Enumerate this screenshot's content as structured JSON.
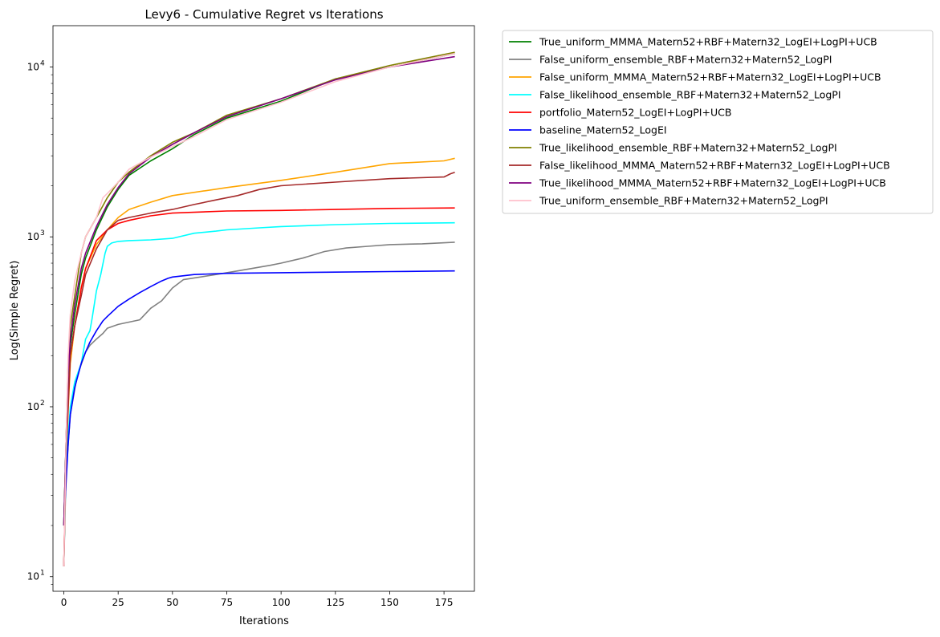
{
  "chart_data": {
    "type": "line",
    "title": "Levy6 - Cumulative Regret vs Iterations",
    "xlabel": "Iterations",
    "ylabel": "Log(Simple Regret)",
    "yscale": "log",
    "xlim": [
      -5,
      189
    ],
    "ylim": [
      8.2,
      17500
    ],
    "xticks": [
      0,
      25,
      50,
      75,
      100,
      125,
      150,
      175
    ],
    "xtick_labels": [
      "0",
      "25",
      "50",
      "75",
      "100",
      "125",
      "150",
      "175"
    ],
    "yticks": [
      10,
      100,
      1000,
      10000
    ],
    "ytick_labels": [
      "10",
      "10",
      "10",
      "10"
    ],
    "ytick_exponents": [
      "1",
      "2",
      "3",
      "4"
    ],
    "grid": false,
    "legend_position": "outside-upper-right",
    "series": [
      {
        "name": "True_uniform_MMMA_Matern52+RBF+Matern32_LogEI+LogPI+UCB",
        "color": "#008000",
        "x": [
          0,
          1,
          2,
          3,
          5,
          8,
          10,
          15,
          20,
          25,
          30,
          40,
          50,
          60,
          75,
          100,
          125,
          150,
          180
        ],
        "y": [
          20,
          60,
          150,
          230,
          350,
          600,
          750,
          1100,
          1500,
          1900,
          2300,
          2800,
          3300,
          4000,
          5000,
          6300,
          8500,
          10000,
          12000
        ]
      },
      {
        "name": "False_uniform_ensemble_RBF+Matern32+Matern52_LogPI",
        "color": "#808080",
        "x": [
          0,
          1,
          3,
          6,
          10,
          12,
          15,
          18,
          20,
          25,
          30,
          35,
          40,
          45,
          50,
          55,
          70,
          80,
          95,
          100,
          110,
          120,
          130,
          140,
          150,
          165,
          180
        ],
        "y": [
          11.5,
          40,
          90,
          150,
          210,
          230,
          250,
          270,
          290,
          305,
          315,
          325,
          380,
          420,
          500,
          560,
          600,
          630,
          680,
          700,
          750,
          820,
          860,
          880,
          900,
          910,
          930
        ]
      },
      {
        "name": "False_uniform_MMMA_Matern52+RBF+Matern32_LogEI+LogPI+UCB",
        "color": "#FFA500",
        "x": [
          0,
          1,
          3,
          5,
          8,
          10,
          15,
          20,
          25,
          30,
          40,
          50,
          75,
          100,
          125,
          150,
          175,
          180
        ],
        "y": [
          11.5,
          50,
          180,
          300,
          500,
          650,
          900,
          1100,
          1300,
          1450,
          1600,
          1750,
          1950,
          2150,
          2400,
          2700,
          2800,
          2900
        ]
      },
      {
        "name": "False_likelihood_ensemble_RBF+Matern32+Matern52_LogPI",
        "color": "#00FFFF",
        "x": [
          0,
          1,
          3,
          5,
          8,
          10,
          12,
          13,
          15,
          17,
          19,
          20,
          22,
          25,
          30,
          40,
          50,
          60,
          70,
          75,
          90,
          100,
          125,
          150,
          180
        ],
        "y": [
          11.5,
          45,
          100,
          140,
          180,
          250,
          280,
          330,
          480,
          600,
          800,
          880,
          920,
          940,
          950,
          960,
          980,
          1050,
          1080,
          1100,
          1130,
          1150,
          1180,
          1200,
          1210
        ]
      },
      {
        "name": "portfolio_Matern52_LogEI+LogPI+UCB",
        "color": "#FF0000",
        "x": [
          0,
          1,
          3,
          5,
          8,
          10,
          15,
          20,
          25,
          30,
          40,
          50,
          75,
          100,
          125,
          150,
          180
        ],
        "y": [
          11.5,
          55,
          200,
          300,
          500,
          650,
          950,
          1100,
          1200,
          1250,
          1330,
          1380,
          1420,
          1430,
          1450,
          1470,
          1480
        ]
      },
      {
        "name": "baseline_Matern52_LogEI",
        "color": "#0000FF",
        "x": [
          0,
          1,
          2,
          3,
          5,
          8,
          10,
          12,
          15,
          18,
          20,
          25,
          30,
          35,
          40,
          45,
          48,
          50,
          60,
          75,
          100,
          125,
          150,
          180
        ],
        "y": [
          20,
          35,
          60,
          90,
          130,
          180,
          210,
          240,
          280,
          320,
          340,
          390,
          430,
          470,
          510,
          550,
          570,
          580,
          600,
          610,
          615,
          620,
          625,
          630
        ]
      },
      {
        "name": "True_likelihood_ensemble_RBF+Matern32+Matern52_LogPI",
        "color": "#808000",
        "x": [
          0,
          1,
          2,
          3,
          5,
          8,
          10,
          15,
          20,
          25,
          30,
          40,
          50,
          60,
          75,
          100,
          125,
          150,
          180
        ],
        "y": [
          20,
          60,
          180,
          300,
          450,
          800,
          1000,
          1300,
          1700,
          2100,
          2400,
          3000,
          3600,
          4100,
          5200,
          6500,
          8500,
          10200,
          12200
        ]
      },
      {
        "name": "False_likelihood_MMMA_Matern52+RBF+Matern32_LogEI+LogPI+UCB",
        "color": "#A52A2A",
        "x": [
          0,
          1,
          3,
          5,
          8,
          10,
          15,
          20,
          25,
          30,
          40,
          50,
          60,
          70,
          80,
          90,
          100,
          125,
          150,
          175,
          178,
          180
        ],
        "y": [
          11.5,
          50,
          200,
          300,
          450,
          600,
          850,
          1100,
          1250,
          1300,
          1380,
          1450,
          1550,
          1650,
          1750,
          1900,
          2000,
          2100,
          2200,
          2250,
          2350,
          2400
        ]
      },
      {
        "name": "True_likelihood_MMMA_Matern52+RBF+Matern32_LogEI+LogPI+UCB",
        "color": "#800080",
        "x": [
          0,
          1,
          2,
          3,
          5,
          8,
          10,
          15,
          20,
          25,
          30,
          40,
          50,
          60,
          75,
          100,
          125,
          150,
          180
        ],
        "y": [
          20,
          60,
          160,
          250,
          400,
          650,
          800,
          1150,
          1550,
          1950,
          2350,
          2950,
          3500,
          4100,
          5100,
          6500,
          8400,
          10000,
          11500
        ]
      },
      {
        "name": "True_uniform_ensemble_RBF+Matern32+Matern52_LogPI",
        "color": "#FFC0CB",
        "x": [
          0,
          1,
          2,
          3,
          5,
          8,
          10,
          15,
          18,
          20,
          25,
          30,
          40,
          50,
          60,
          75,
          100,
          125,
          150,
          180
        ],
        "y": [
          11.5,
          60,
          200,
          350,
          550,
          800,
          1000,
          1300,
          1700,
          1800,
          2100,
          2500,
          2950,
          3400,
          3900,
          4900,
          6200,
          8200,
          10000,
          12000
        ]
      }
    ]
  }
}
